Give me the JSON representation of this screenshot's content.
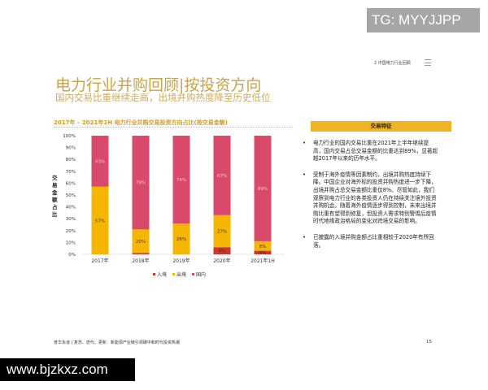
{
  "watermarks": {
    "top": "TG: MYYJJPP",
    "bottom": "www.bjzkxz.com"
  },
  "header": {
    "section": "2 中国电力行业回顾"
  },
  "title": "电力行业并购回顾|按投资方向",
  "subtitle": "国内交易比重继续走高，出境并购热度降至历史低位",
  "chart_data": {
    "type": "bar",
    "stacked": true,
    "title": "2017年 – 2021年1H 电力行业并购交易投资方向占比(按交易金额)",
    "ylabel": "交易金额占比",
    "xlabel": "",
    "categories": [
      "2017年",
      "2018年",
      "2019年",
      "2020年",
      "2021年1H"
    ],
    "y_ticks": [
      "0%",
      "10%",
      "20%",
      "30%",
      "40%",
      "50%",
      "60%",
      "70%",
      "80%",
      "90%",
      "100%"
    ],
    "ylim": [
      0,
      100
    ],
    "series": [
      {
        "name": "入境",
        "color": "#d0352b",
        "values": [
          0,
          1,
          0,
          6,
          3
        ],
        "labels": [
          "",
          "",
          "",
          "6%",
          "3%"
        ]
      },
      {
        "name": "出境",
        "color": "#f6b600",
        "values": [
          57,
          20,
          26,
          27,
          8
        ],
        "labels": [
          "57%",
          "20%",
          "26%",
          "27%",
          "8%"
        ]
      },
      {
        "name": "国内",
        "color": "#d94a6a",
        "values": [
          43,
          79,
          74,
          67,
          89
        ],
        "labels": [
          "43%",
          "79%",
          "74%",
          "67%",
          "89%"
        ]
      }
    ],
    "legend": "bottom"
  },
  "panel": {
    "heading": "交易特征",
    "bullets": [
      "电力行业的国内交易比重在2021年上半年继续提高，国内交易占总交易金额的比重达到89%，显著超越2017年以来的历年水平。",
      "受制于海外疫情等因素制约，出境并购热度持续下降。中国企业对海外标的投资并购热度进一步下降，出境并购占总交易金额比重仅8%。尽管如此，我们观察到电力行业的各类投资人仍在持续关注境外投资并购机会。随着海外疫情逐步得到控制，未来出境并购比重有望得到修复，但投资人需求特别警惕后疫情时代地缘政治格局的变化对跨境交易的影响。",
      "已披露的入境并购金额占比重相较于2020年有所回落。"
    ]
  },
  "footer": {
    "text": "普华永道 | 复苏、迭代、更新：新能源产业链引领碳中和时代投资热潮",
    "page": "15"
  }
}
